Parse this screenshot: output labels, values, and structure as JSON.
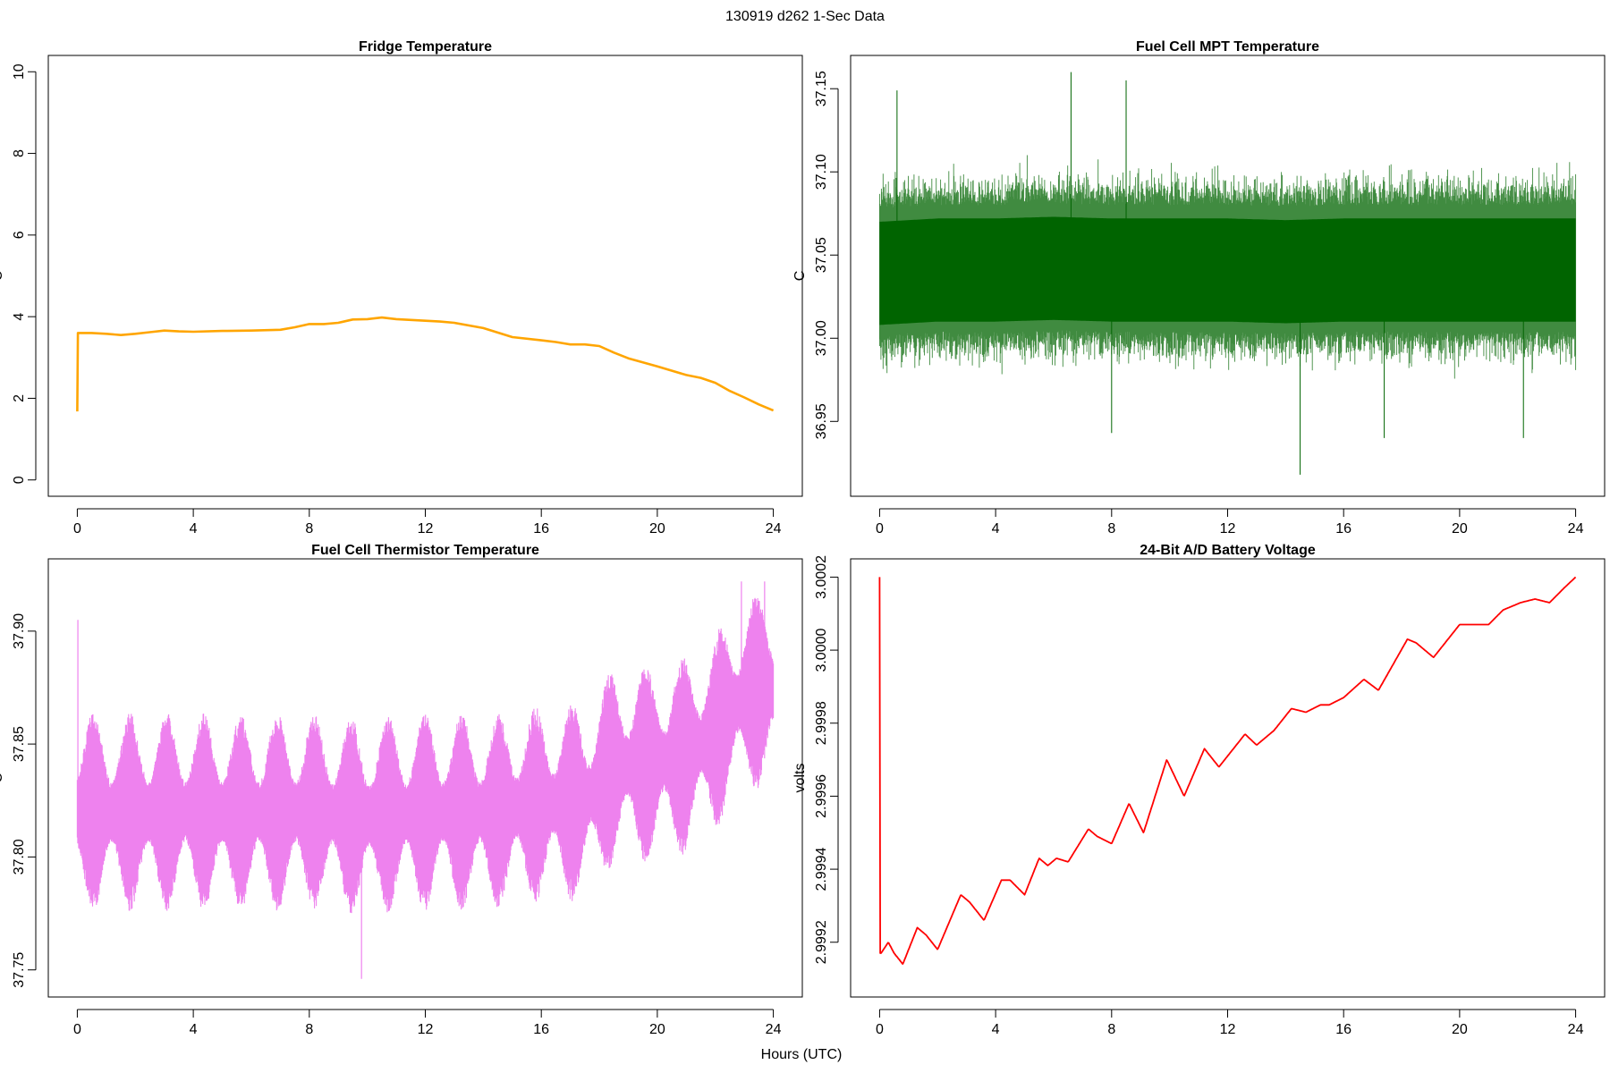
{
  "page": {
    "suptitle": "130919   d262   1-Sec Data",
    "xlabel": "Hours (UTC)"
  },
  "chart_data": [
    {
      "type": "line",
      "title": "Fridge Temperature",
      "xlabel": "",
      "ylabel": "C",
      "xlim": [
        -1,
        25
      ],
      "ylim": [
        -0.4,
        10.4
      ],
      "xticks": [
        0,
        4,
        8,
        12,
        16,
        20,
        24
      ],
      "xtick_labels": [
        "0",
        "4",
        "8",
        "12",
        "16",
        "20",
        "24"
      ],
      "yticks": [
        0,
        2,
        4,
        6,
        8,
        10
      ],
      "ytick_labels": [
        "0",
        "2",
        "4",
        "6",
        "8",
        "10"
      ],
      "grid": false,
      "color": "#FFA500",
      "x": [
        0,
        0.02,
        0.5,
        1,
        1.5,
        2,
        2.5,
        3,
        3.5,
        4,
        5,
        6,
        7,
        7.5,
        8,
        8.5,
        9,
        9.5,
        10,
        10.5,
        11,
        11.5,
        12,
        12.5,
        13,
        14,
        15,
        16,
        16.5,
        17,
        17.5,
        18,
        18.5,
        19,
        20,
        21,
        21.5,
        22,
        22.5,
        23,
        23.5,
        24
      ],
      "y": [
        1.68,
        3.6,
        3.6,
        3.58,
        3.55,
        3.58,
        3.62,
        3.66,
        3.64,
        3.63,
        3.65,
        3.66,
        3.68,
        3.74,
        3.82,
        3.82,
        3.85,
        3.93,
        3.94,
        3.98,
        3.94,
        3.92,
        3.9,
        3.88,
        3.85,
        3.72,
        3.5,
        3.42,
        3.38,
        3.32,
        3.32,
        3.28,
        3.12,
        2.98,
        2.78,
        2.57,
        2.5,
        2.38,
        2.18,
        2.02,
        1.85,
        1.7
      ]
    },
    {
      "type": "line",
      "title": "Fuel Cell MPT Temperature",
      "xlabel": "",
      "ylabel": "C",
      "xlim": [
        -1,
        25
      ],
      "ylim": [
        36.905,
        37.17
      ],
      "xticks": [
        0,
        4,
        8,
        12,
        16,
        20,
        24
      ],
      "xtick_labels": [
        "0",
        "4",
        "8",
        "12",
        "16",
        "20",
        "24"
      ],
      "yticks": [
        36.95,
        37.0,
        37.05,
        37.1,
        37.15
      ],
      "ytick_labels": [
        "36.95",
        "37.00",
        "37.05",
        "37.10",
        "37.15"
      ],
      "grid": false,
      "color": "#006400",
      "x": [
        0,
        2,
        4,
        6,
        8,
        10,
        12,
        14,
        16,
        18,
        20,
        22,
        24
      ],
      "y": [
        37.04,
        37.042,
        37.042,
        37.043,
        37.042,
        37.042,
        37.042,
        37.041,
        37.042,
        37.042,
        37.042,
        37.042,
        37.042
      ],
      "noise_band": [
        0.02,
        0.038
      ],
      "extremes": [
        [
          0.6,
          37.149
        ],
        [
          6.6,
          37.16
        ],
        [
          8.5,
          37.155
        ],
        [
          14.5,
          36.918
        ],
        [
          8,
          36.943
        ],
        [
          17.4,
          36.94
        ],
        [
          22.2,
          36.94
        ]
      ]
    },
    {
      "type": "line",
      "title": "Fuel Cell Thermistor Temperature",
      "xlabel": "",
      "ylabel": "C",
      "xlim": [
        -1,
        25
      ],
      "ylim": [
        37.738,
        37.932
      ],
      "xticks": [
        0,
        4,
        8,
        12,
        16,
        20,
        24
      ],
      "xtick_labels": [
        "0",
        "4",
        "8",
        "12",
        "16",
        "20",
        "24"
      ],
      "yticks": [
        37.75,
        37.8,
        37.85,
        37.9
      ],
      "ytick_labels": [
        "37.75",
        "37.80",
        "37.85",
        "37.90"
      ],
      "grid": false,
      "color": "#EE82EE",
      "x": [
        0,
        2,
        4,
        6,
        8,
        10,
        12,
        14,
        16,
        17.5,
        18.5,
        20,
        21,
        22,
        23,
        24
      ],
      "y": [
        37.82,
        37.82,
        37.82,
        37.82,
        37.82,
        37.818,
        37.82,
        37.82,
        37.823,
        37.825,
        37.84,
        37.842,
        37.845,
        37.855,
        37.872,
        37.875
      ],
      "band": [
        0.012,
        0.04
      ],
      "oscillation_period_h": 1.27,
      "spikes": [
        [
          0.02,
          37.905
        ],
        [
          9.8,
          37.746
        ],
        [
          22.9,
          37.922
        ],
        [
          23.7,
          37.922
        ]
      ]
    },
    {
      "type": "line",
      "title": "24-Bit A/D Battery Voltage",
      "xlabel": "",
      "ylabel": "volts",
      "xlim": [
        -1,
        25
      ],
      "ylim": [
        2.99905,
        3.00025
      ],
      "xticks": [
        0,
        4,
        8,
        12,
        16,
        20,
        24
      ],
      "xtick_labels": [
        "0",
        "4",
        "8",
        "12",
        "16",
        "20",
        "24"
      ],
      "yticks": [
        2.9992,
        2.9994,
        2.9996,
        2.9998,
        3.0,
        3.0002
      ],
      "ytick_labels": [
        "2.9992",
        "2.9994",
        "2.9996",
        "2.9998",
        "3.0000",
        "3.0002"
      ],
      "grid": false,
      "color": "#FF0000",
      "x": [
        0,
        0.02,
        0.05,
        0.3,
        0.5,
        0.8,
        1.3,
        1.6,
        2.0,
        2.8,
        3.1,
        3.6,
        4.2,
        4.5,
        5.0,
        5.5,
        5.8,
        6.1,
        6.5,
        7.2,
        7.5,
        8.0,
        8.6,
        9.1,
        9.9,
        10.5,
        11.2,
        11.7,
        12.6,
        13.0,
        13.6,
        14.2,
        14.7,
        15.2,
        15.5,
        16.0,
        16.7,
        17.2,
        18.2,
        18.5,
        19.1,
        20.0,
        20.4,
        21.0,
        21.5,
        22.1,
        22.6,
        23.1,
        23.6,
        24.0
      ],
      "y": [
        3.0002,
        2.99917,
        2.99917,
        2.9992,
        2.99917,
        2.99914,
        2.99924,
        2.99922,
        2.99918,
        2.99933,
        2.99931,
        2.99926,
        2.99937,
        2.99937,
        2.99933,
        2.99943,
        2.99941,
        2.99943,
        2.99942,
        2.99951,
        2.99949,
        2.99947,
        2.99958,
        2.9995,
        2.9997,
        2.9996,
        2.99973,
        2.99968,
        2.99977,
        2.99974,
        2.99978,
        2.99984,
        2.99983,
        2.99985,
        2.99985,
        2.99987,
        2.99992,
        2.99989,
        3.00003,
        3.00002,
        2.99998,
        3.00007,
        3.00007,
        3.00007,
        3.00011,
        3.00013,
        3.00014,
        3.00013,
        3.00017,
        3.0002
      ]
    }
  ]
}
